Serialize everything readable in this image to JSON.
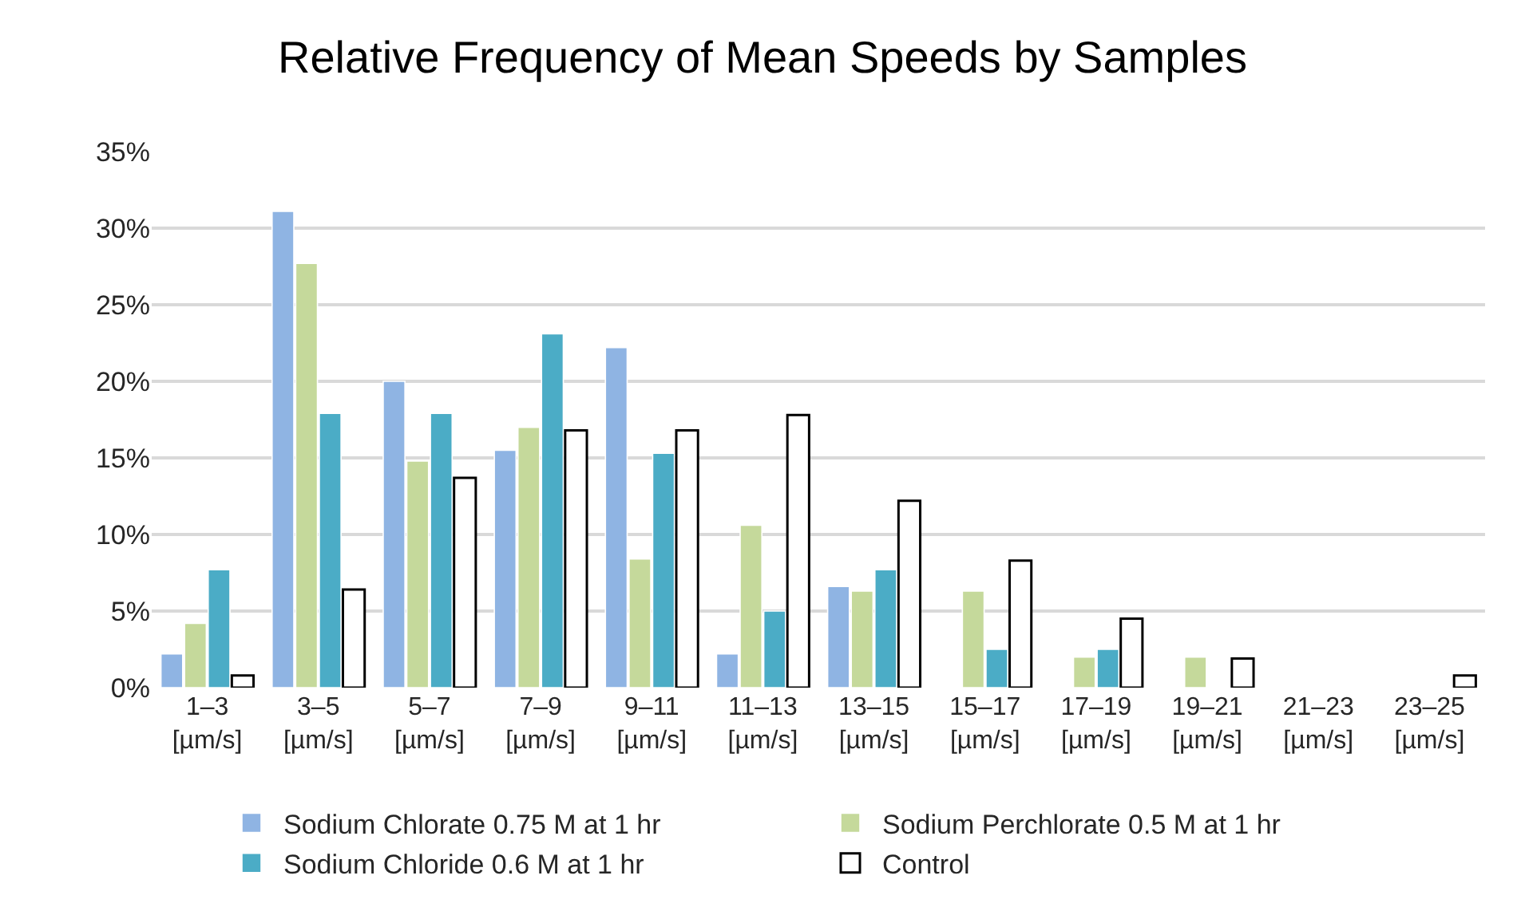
{
  "chart_data": {
    "type": "bar",
    "title": "Relative Frequency of Mean Speeds by Samples",
    "categories": [
      "1–3\n[µm/s]",
      "3–5\n[µm/s]",
      "5–7\n[µm/s]",
      "7–9\n[µm/s]",
      "9–11\n[µm/s]",
      "11–13\n[µm/s]",
      "13–15\n[µm/s]",
      "15–17\n[µm/s]",
      "17–19\n[µm/s]",
      "19–21\n[µm/s]",
      "21–23\n[µm/s]",
      "23–25\n[µm/s]"
    ],
    "series": [
      {
        "name": "Sodium Chlorate 0.75 M at 1 hr",
        "color": "#8fb4e3",
        "values": [
          2.2,
          31.1,
          20.0,
          15.5,
          22.2,
          2.2,
          6.6,
          null,
          null,
          null,
          null,
          null
        ]
      },
      {
        "name": "Sodium Perchlorate 0.5 M at 1 hr",
        "color": "#c5d99b",
        "values": [
          4.2,
          27.7,
          14.8,
          17.0,
          8.4,
          10.6,
          6.3,
          6.3,
          2.0,
          2.0,
          null,
          null
        ]
      },
      {
        "name": "Sodium Chloride 0.6 M at 1 hr",
        "color": "#4bacc6",
        "values": [
          7.7,
          17.9,
          17.9,
          23.1,
          15.3,
          5.0,
          7.7,
          2.5,
          2.5,
          null,
          null,
          null
        ]
      },
      {
        "name": "Control",
        "color": "#ffffff",
        "values": [
          0.8,
          6.4,
          13.7,
          16.8,
          16.8,
          17.8,
          12.2,
          8.3,
          4.5,
          1.9,
          null,
          0.8
        ]
      }
    ],
    "ylim": [
      0,
      35
    ],
    "yticks": [
      {
        "value": 0,
        "label": "0%"
      },
      {
        "value": 5,
        "label": "5%"
      },
      {
        "value": 10,
        "label": "10%"
      },
      {
        "value": 15,
        "label": "15%"
      },
      {
        "value": 20,
        "label": "20%"
      },
      {
        "value": 25,
        "label": "25%"
      },
      {
        "value": 30,
        "label": "30%"
      },
      {
        "value": 35,
        "label": "35%"
      }
    ],
    "grid": "y",
    "legend": "bottom"
  }
}
